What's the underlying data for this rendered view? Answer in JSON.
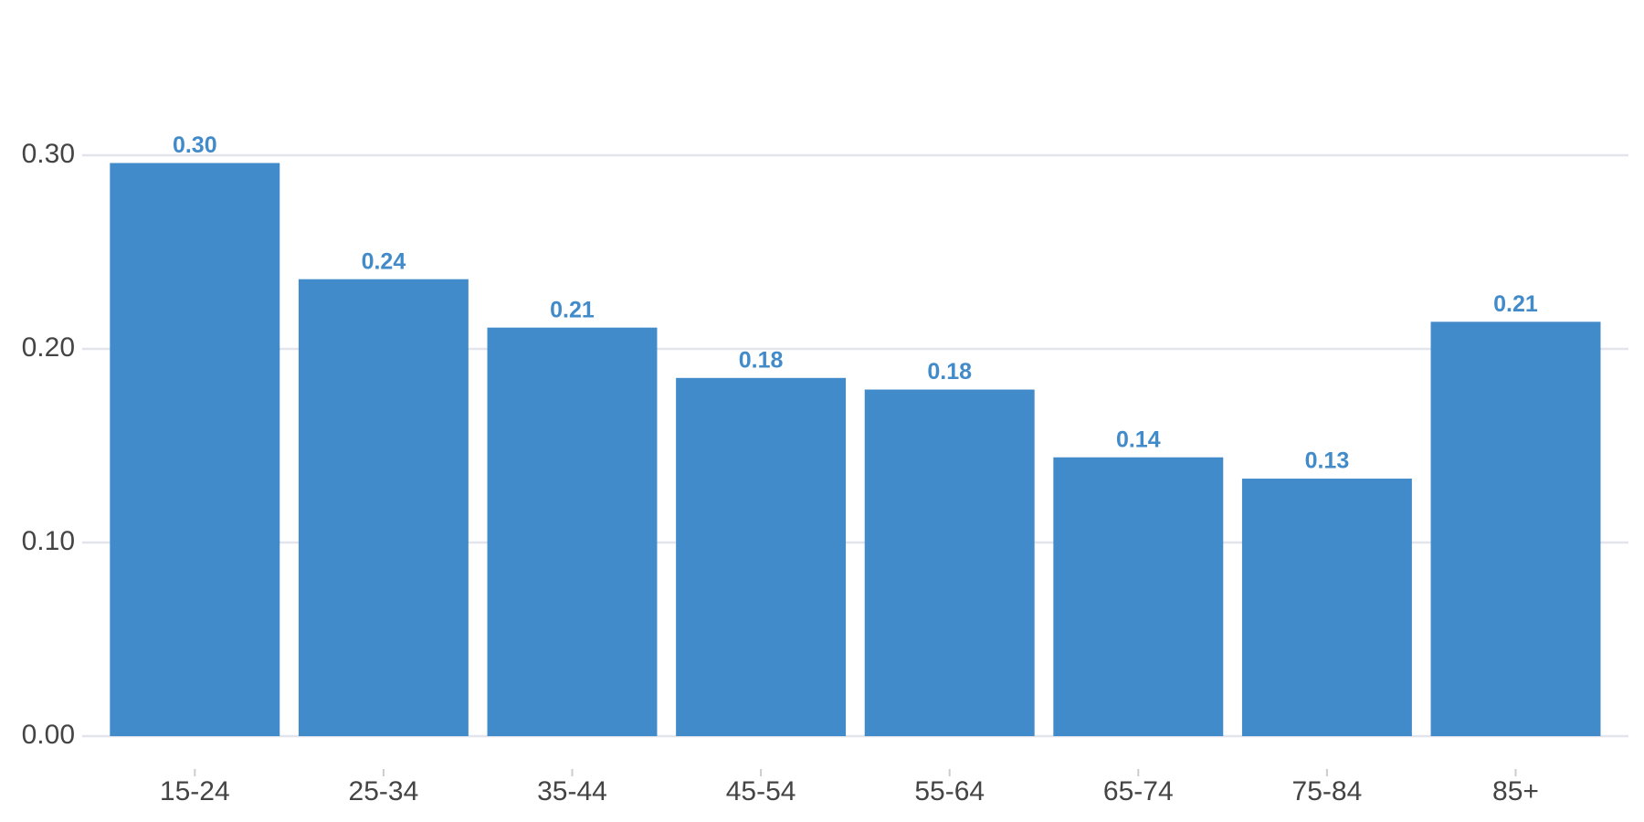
{
  "chart_data": {
    "type": "bar",
    "categories": [
      "15-24",
      "25-34",
      "35-44",
      "45-54",
      "55-64",
      "65-74",
      "75-84",
      "85+"
    ],
    "values": [
      0.296,
      0.236,
      0.211,
      0.185,
      0.179,
      0.144,
      0.133,
      0.214
    ],
    "value_labels": [
      "0.30",
      "0.24",
      "0.21",
      "0.18",
      "0.18",
      "0.14",
      "0.13",
      "0.21"
    ],
    "color": "#428bca",
    "ylim": [
      0,
      0.35
    ],
    "yticks": [
      {
        "value": 0,
        "label": "0.00"
      },
      {
        "value": 0.1,
        "label": "0.10"
      },
      {
        "value": 0.2,
        "label": "0.20"
      },
      {
        "value": 0.3,
        "label": "0.30"
      }
    ],
    "grid": true
  }
}
